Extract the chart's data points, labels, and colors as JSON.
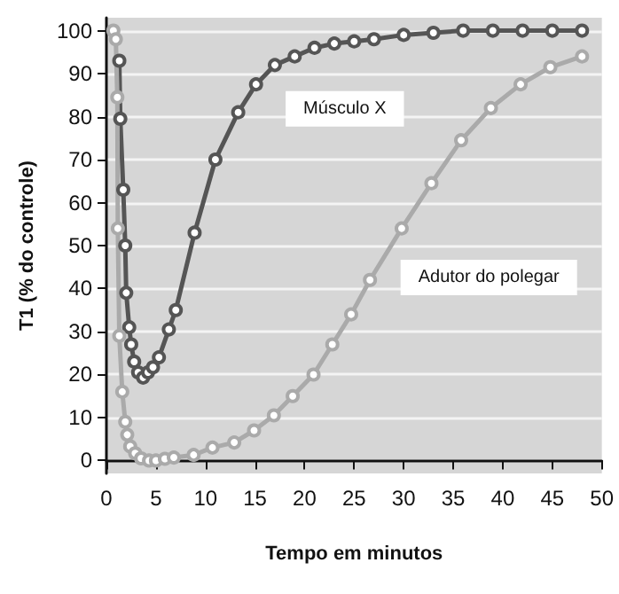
{
  "chart_data": {
    "type": "line",
    "xlabel": "Tempo em minutos",
    "ylabel": "T1 (% do controle)",
    "series": [
      {
        "name": "Músculo X",
        "color": "#555555",
        "x": [
          1.3,
          1.4,
          1.7,
          1.9,
          2.0,
          2.3,
          2.5,
          2.8,
          3.2,
          3.7,
          4.2,
          4.7,
          5.3,
          6.3,
          7.0,
          8.9,
          11,
          13.3,
          15.1,
          17,
          19,
          21,
          23,
          25,
          27,
          30,
          33,
          36,
          39,
          42,
          45,
          48
        ],
        "values": [
          93,
          79.5,
          63,
          50,
          39,
          31,
          27,
          23,
          20.5,
          19.3,
          20.5,
          21.7,
          24,
          30.5,
          35,
          53,
          70,
          81,
          87.5,
          92,
          94,
          96,
          97,
          97.5,
          98,
          99,
          99.5,
          100,
          100,
          100,
          100,
          100
        ]
      },
      {
        "name": "Adutor do polegar",
        "color": "#aaaaaa",
        "x": [
          0.7,
          0.95,
          1.1,
          1.15,
          1.3,
          1.6,
          1.9,
          2.1,
          2.4,
          2.9,
          3.5,
          4.3,
          5.0,
          5.9,
          6.8,
          8.8,
          10.7,
          12.9,
          14.9,
          16.9,
          18.8,
          20.9,
          22.8,
          24.7,
          26.6,
          29.8,
          32.8,
          35.8,
          38.8,
          41.8,
          44.8,
          48
        ],
        "values": [
          100,
          98,
          84.5,
          54,
          29,
          16,
          9,
          6,
          3.3,
          1.7,
          0.5,
          0,
          0,
          0.4,
          0.7,
          1.3,
          3,
          4.2,
          7,
          10.5,
          15,
          20,
          27,
          34,
          42,
          54,
          64.5,
          74.5,
          82,
          87.5,
          91.5,
          94
        ]
      }
    ],
    "legend": false,
    "xlim": [
      0,
      50
    ],
    "xticks": [
      0,
      5,
      10,
      15,
      20,
      25,
      30,
      35,
      40,
      45,
      50
    ],
    "ylim": [
      -3,
      103
    ],
    "yticks": [
      0,
      10,
      20,
      30,
      40,
      50,
      60,
      70,
      80,
      90,
      100
    ],
    "grid": "y",
    "marker": "circle",
    "line_style": "solid"
  }
}
